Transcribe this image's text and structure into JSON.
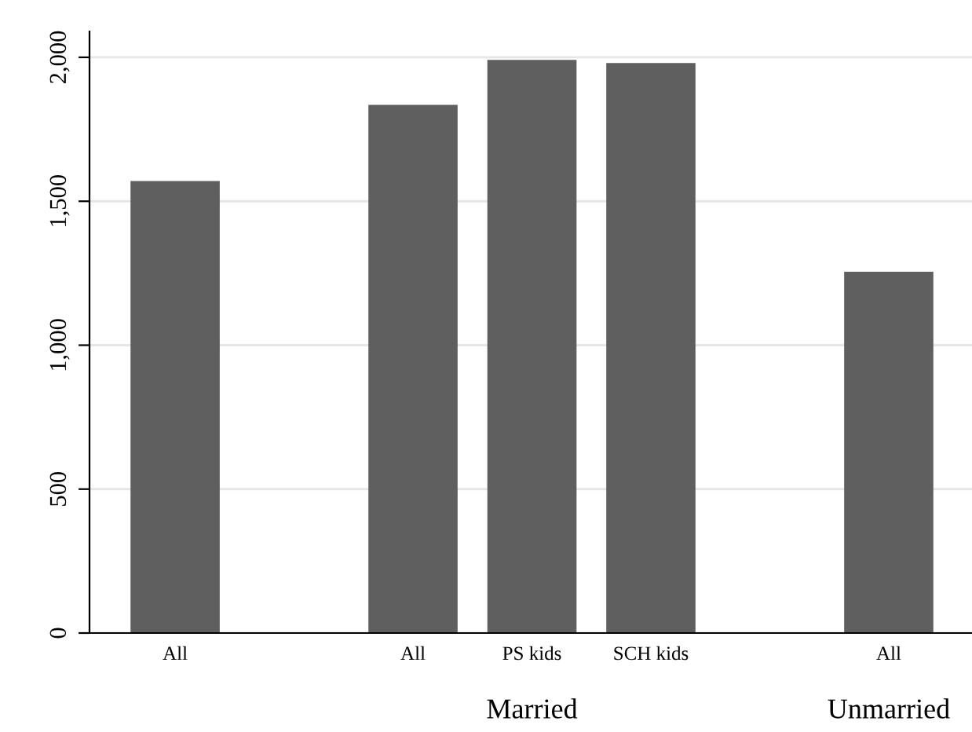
{
  "chart_data": {
    "type": "bar",
    "categories": [
      "All",
      null,
      "All",
      "PS kids",
      "SCH kids",
      null,
      "All"
    ],
    "values": [
      1570,
      null,
      1835,
      1991,
      1980,
      null,
      1255
    ],
    "color": "#5f5f5f",
    "ylim": [
      0,
      2090
    ],
    "yticks": [
      {
        "value": 0,
        "label": "0"
      },
      {
        "value": 500,
        "label": "500"
      },
      {
        "value": 1000,
        "label": "1,000"
      },
      {
        "value": 1500,
        "label": "1,500"
      },
      {
        "value": 2000,
        "label": "2,000"
      }
    ],
    "grid": "y",
    "annotations": [
      "Married",
      "Unmarried"
    ]
  }
}
